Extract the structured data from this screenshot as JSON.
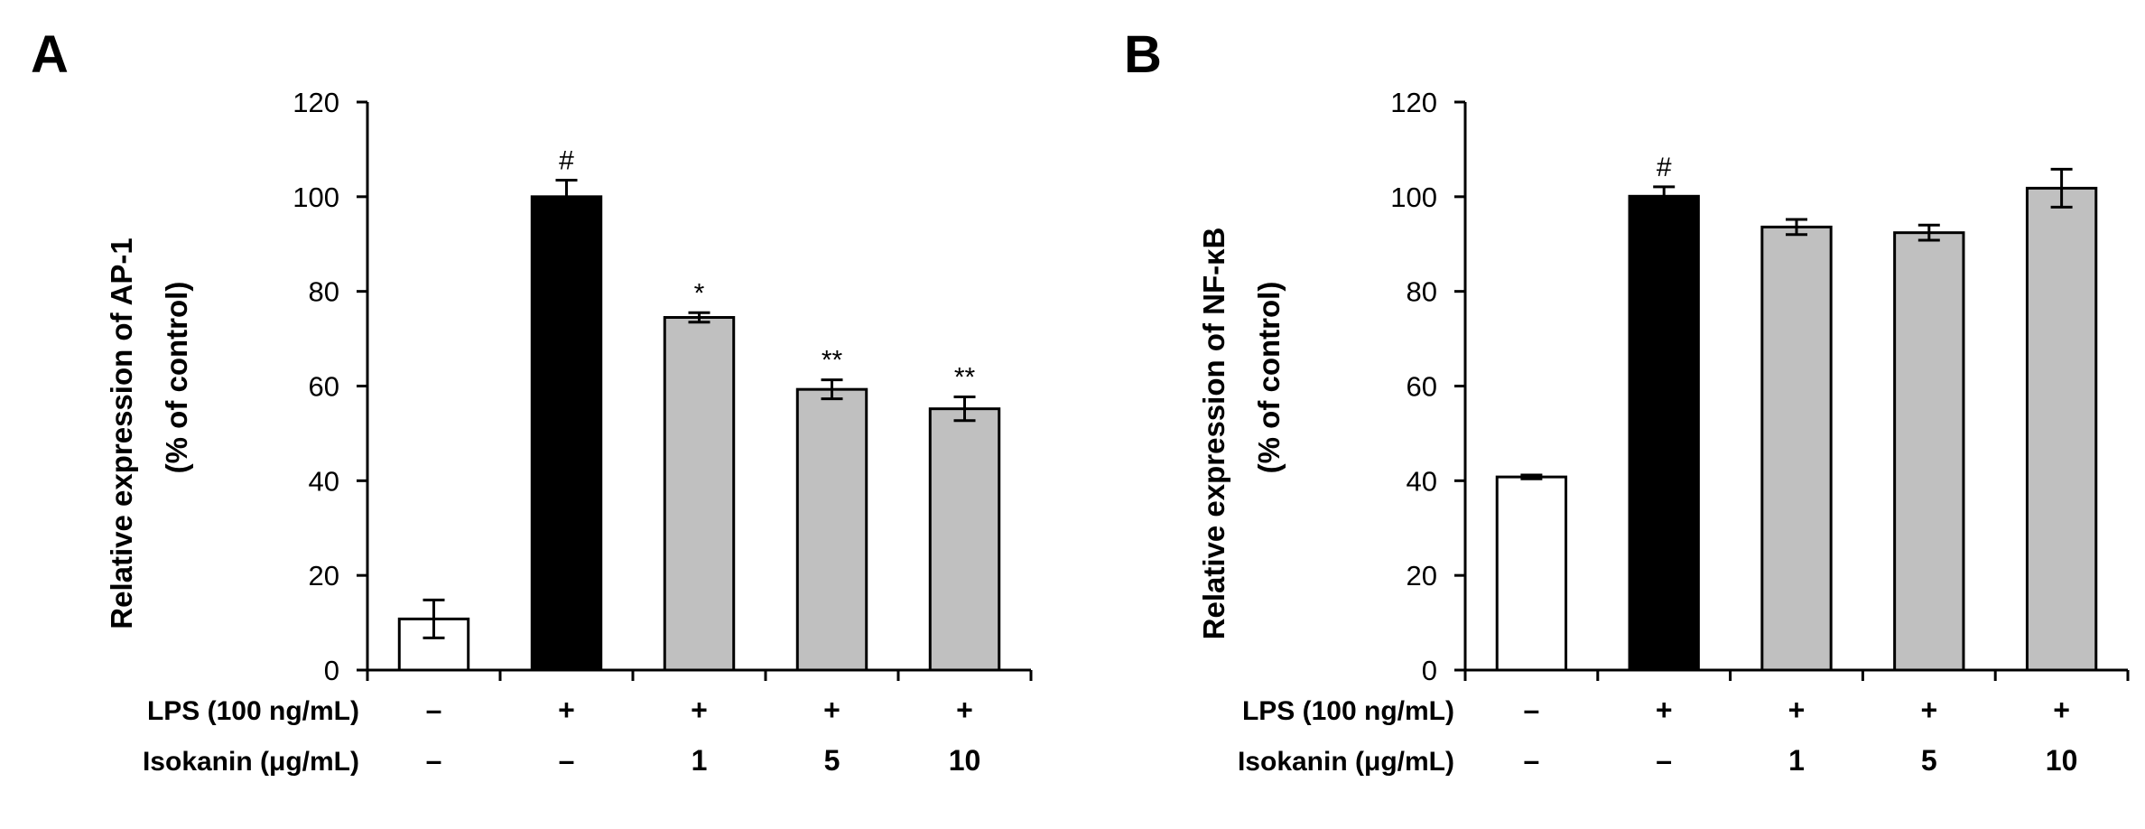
{
  "chart_data": [
    {
      "type": "bar",
      "panel": "A",
      "ylabel_line1": "Relative expression of AP-1",
      "ylabel_line2": "(% of control)",
      "ylim": [
        0,
        120
      ],
      "yticks": [
        0,
        20,
        40,
        60,
        80,
        100,
        120
      ],
      "rows": [
        {
          "label": "LPS (100 ng/mL)",
          "values": [
            "–",
            "+",
            "+",
            "+",
            "+"
          ]
        },
        {
          "label": "Isokanin (μg/mL)",
          "values": [
            "–",
            "–",
            "1",
            "5",
            "10"
          ]
        }
      ],
      "values": [
        10.8,
        100,
        74.5,
        59.3,
        55.2
      ],
      "errors": [
        4,
        3.5,
        1,
        2,
        2.5
      ],
      "annotations": [
        "",
        "#",
        "*",
        "**",
        "**"
      ],
      "colors": [
        "#ffffff",
        "#000000",
        "#c0c0c0",
        "#c0c0c0",
        "#c0c0c0"
      ]
    },
    {
      "type": "bar",
      "panel": "B",
      "ylabel_line1": "Relative expression of NF-κB",
      "ylabel_line2": "(% of control)",
      "ylim": [
        0,
        120
      ],
      "yticks": [
        0,
        20,
        40,
        60,
        80,
        100,
        120
      ],
      "rows": [
        {
          "label": "LPS (100 ng/mL)",
          "values": [
            "–",
            "+",
            "+",
            "+",
            "+"
          ]
        },
        {
          "label": "Isokanin (μg/mL)",
          "values": [
            "–",
            "–",
            "1",
            "5",
            "10"
          ]
        }
      ],
      "values": [
        40.8,
        100.1,
        93.6,
        92.4,
        101.8
      ],
      "errors": [
        0.4,
        2,
        1.6,
        1.6,
        4
      ],
      "annotations": [
        "",
        "#",
        "",
        "",
        ""
      ],
      "colors": [
        "#ffffff",
        "#000000",
        "#c0c0c0",
        "#c0c0c0",
        "#c0c0c0"
      ]
    }
  ]
}
